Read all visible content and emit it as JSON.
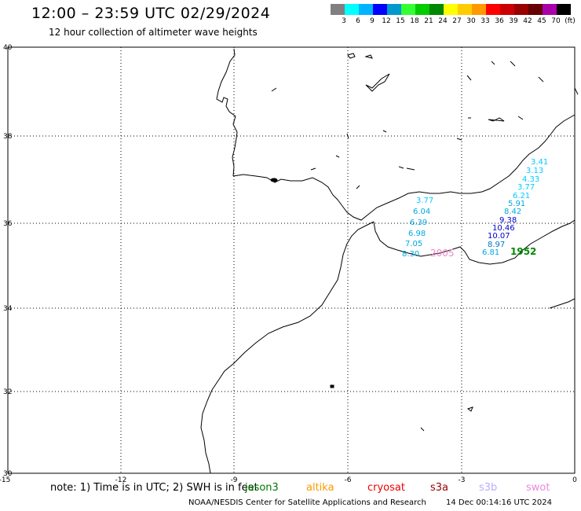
{
  "header": {
    "title": "12:00 – 23:59 UTC 02/29/2024",
    "subtitle": "12 hour collection of altimeter wave heights"
  },
  "legend": {
    "swatches": [
      "#808080",
      "#00ffff",
      "#00b4ff",
      "#0000ff",
      "#0099cc",
      "#33ff33",
      "#00cc00",
      "#008800",
      "#ffff00",
      "#ffcc00",
      "#ff9900",
      "#ff0000",
      "#cc0000",
      "#990000",
      "#660000",
      "#aa00aa",
      "#ccaaff",
      "#ff88ff",
      "#000000"
    ],
    "labels": [
      "3",
      "6",
      "9",
      "12",
      "15",
      "18",
      "21",
      "24",
      "27",
      "30",
      "33",
      "36",
      "39",
      "42",
      "45",
      "70",
      "(ft)"
    ]
  },
  "axes": {
    "x_ticks": [
      "-15",
      "-12",
      "-9",
      "-6",
      "-3",
      "0"
    ],
    "y_ticks": [
      "40",
      "38",
      "36",
      "34",
      "32",
      "30"
    ]
  },
  "observations": [
    {
      "text": "3.41",
      "color": "#00ccff"
    },
    {
      "text": "3.13",
      "color": "#00ccff"
    },
    {
      "text": "4.33",
      "color": "#00ccff"
    },
    {
      "text": "3.77",
      "color": "#00ccff"
    },
    {
      "text": "6.21",
      "color": "#00ccff"
    },
    {
      "text": "5.91",
      "color": "#00aadd"
    },
    {
      "text": "8.42",
      "color": "#00aadd"
    },
    {
      "text": "9.38",
      "color": "#0000cc"
    },
    {
      "text": "10.46",
      "color": "#0000cc"
    },
    {
      "text": "10.07",
      "color": "#0000cc"
    },
    {
      "text": "8.97",
      "color": "#0077cc"
    },
    {
      "text": "6.81",
      "color": "#00aadd"
    },
    {
      "text": "3.77",
      "color": "#00ccff"
    },
    {
      "text": "6.04",
      "color": "#00aadd"
    },
    {
      "text": "6.39",
      "color": "#00aadd"
    },
    {
      "text": "6.98",
      "color": "#00aadd"
    },
    {
      "text": "7.05",
      "color": "#00aadd"
    },
    {
      "text": "8.30",
      "color": "#00aadd"
    }
  ],
  "pass_times": [
    {
      "text": "2005",
      "color": "#ee88cc"
    },
    {
      "text": "1952",
      "color": "#008800"
    }
  ],
  "footer": {
    "note": "note:  1) Time is in UTC;  2) SWH is in feet",
    "satellites": [
      {
        "name": "jason3",
        "color": "#007700"
      },
      {
        "name": "altika",
        "color": "#ff9900"
      },
      {
        "name": "cryosat",
        "color": "#ee0000"
      },
      {
        "name": "s3a",
        "color": "#990000"
      },
      {
        "name": "s3b",
        "color": "#bbaaff"
      },
      {
        "name": "swot",
        "color": "#ee88dd"
      }
    ],
    "credit": "NOAA/NESDIS Center for Satellite Applications and Research",
    "timestamp": "14 Dec 00:14:16 UTC 2024"
  }
}
